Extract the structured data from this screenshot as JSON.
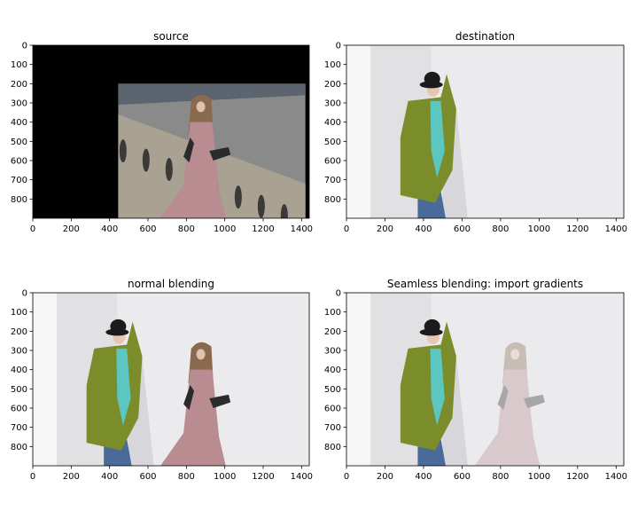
{
  "chart_data": [
    {
      "type": "image",
      "title": "source",
      "x_ticks": [
        0,
        200,
        400,
        600,
        800,
        1000,
        1200,
        1400
      ],
      "y_ticks": [
        0,
        100,
        200,
        300,
        400,
        500,
        600,
        700,
        800
      ],
      "xlim": [
        0,
        1440
      ],
      "ylim": [
        0,
        900
      ],
      "content": {
        "background": "#000000",
        "photo_region": {
          "x": [
            445,
            1420
          ],
          "y": [
            200,
            900
          ]
        },
        "people": [
          {
            "kind": "woman-pink-dress",
            "cx": 880,
            "top": 250,
            "bottom": 900,
            "opacity": 1
          }
        ],
        "scene": "stairs"
      }
    },
    {
      "type": "image",
      "title": "destination",
      "x_ticks": [
        0,
        200,
        400,
        600,
        800,
        1000,
        1200,
        1400
      ],
      "y_ticks": [
        0,
        100,
        200,
        300,
        400,
        500,
        600,
        700,
        800
      ],
      "xlim": [
        0,
        1440
      ],
      "ylim": [
        0,
        900
      ],
      "content": {
        "background": "#ebebee",
        "wall_split_x": [
          125,
          440
        ],
        "people": [
          {
            "kind": "man-green-jacket",
            "cx": 430,
            "top": 130,
            "bottom": 900,
            "opacity": 1
          }
        ]
      }
    },
    {
      "type": "image",
      "title": "normal blending",
      "x_ticks": [
        0,
        200,
        400,
        600,
        800,
        1000,
        1200,
        1400
      ],
      "y_ticks": [
        0,
        100,
        200,
        300,
        400,
        500,
        600,
        700,
        800
      ],
      "xlim": [
        0,
        1440
      ],
      "ylim": [
        0,
        900
      ],
      "content": {
        "background": "#ebebee",
        "wall_split_x": [
          125,
          440
        ],
        "people": [
          {
            "kind": "man-green-jacket",
            "cx": 430,
            "top": 130,
            "bottom": 900,
            "opacity": 1
          },
          {
            "kind": "woman-pink-dress",
            "cx": 880,
            "top": 250,
            "bottom": 900,
            "opacity": 1
          }
        ]
      }
    },
    {
      "type": "image",
      "title": "Seamless blending: import gradients",
      "x_ticks": [
        0,
        200,
        400,
        600,
        800,
        1000,
        1200,
        1400
      ],
      "y_ticks": [
        0,
        100,
        200,
        300,
        400,
        500,
        600,
        700,
        800
      ],
      "xlim": [
        0,
        1440
      ],
      "ylim": [
        0,
        900
      ],
      "content": {
        "background": "#ebebee",
        "wall_split_x": [
          125,
          440
        ],
        "people": [
          {
            "kind": "man-green-jacket",
            "cx": 430,
            "top": 130,
            "bottom": 900,
            "opacity": 1
          },
          {
            "kind": "woman-pink-dress",
            "cx": 880,
            "top": 250,
            "bottom": 900,
            "opacity": 0.35
          }
        ]
      }
    }
  ]
}
